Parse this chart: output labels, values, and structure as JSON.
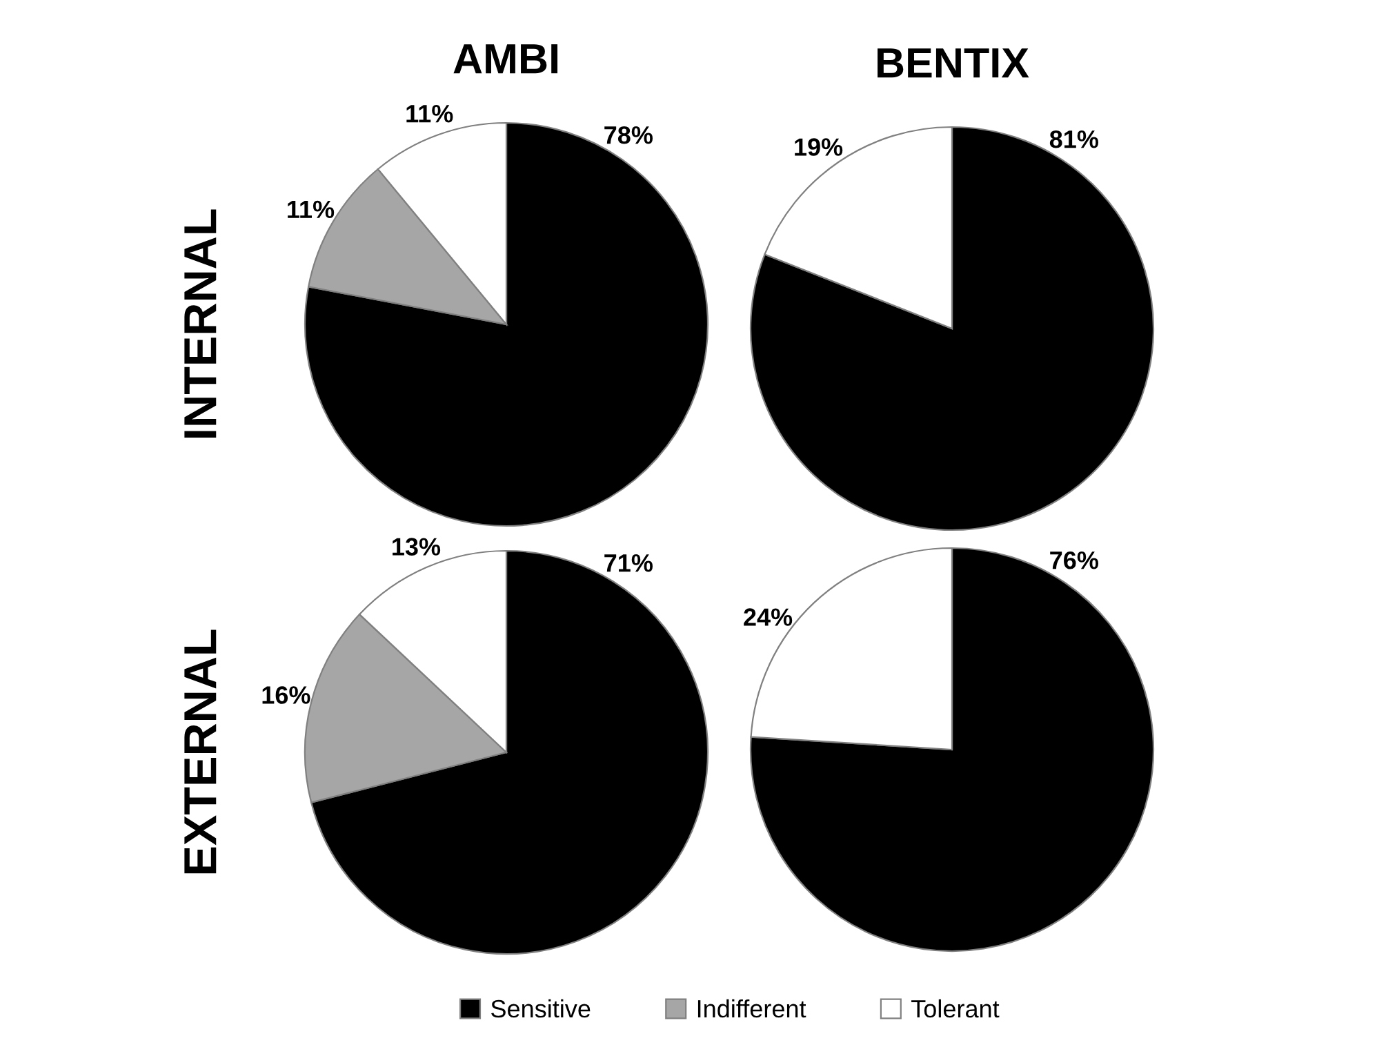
{
  "chart_data": [
    {
      "type": "pie",
      "title": "AMBI",
      "ylabel": "INTERNAL",
      "categories": [
        "Sensitive",
        "Indifferent",
        "Tolerant"
      ],
      "values": [
        78,
        11,
        11
      ],
      "colors": [
        "#000000",
        "#a6a6a6",
        "#ffffff"
      ],
      "value_labels": [
        "78%",
        "11%",
        "11%"
      ],
      "legend": "bottom"
    },
    {
      "type": "pie",
      "title": "BENTIX",
      "categories": [
        null,
        null
      ],
      "values": [
        81,
        19
      ],
      "colors": [
        "#000000",
        "#ffffff"
      ],
      "value_labels": [
        "81%",
        "19%"
      ]
    },
    {
      "type": "pie",
      "ylabel": "EXTERNAL",
      "categories": [
        null,
        null,
        null
      ],
      "values": [
        71,
        16,
        13
      ],
      "colors": [
        "#000000",
        "#a6a6a6",
        "#ffffff"
      ],
      "value_labels": [
        "71%",
        "16%",
        "13%"
      ]
    },
    {
      "type": "pie",
      "categories": [
        null,
        null
      ],
      "values": [
        76,
        24
      ],
      "colors": [
        "#000000",
        "#ffffff"
      ],
      "value_labels": [
        "76%",
        "24%"
      ]
    }
  ]
}
